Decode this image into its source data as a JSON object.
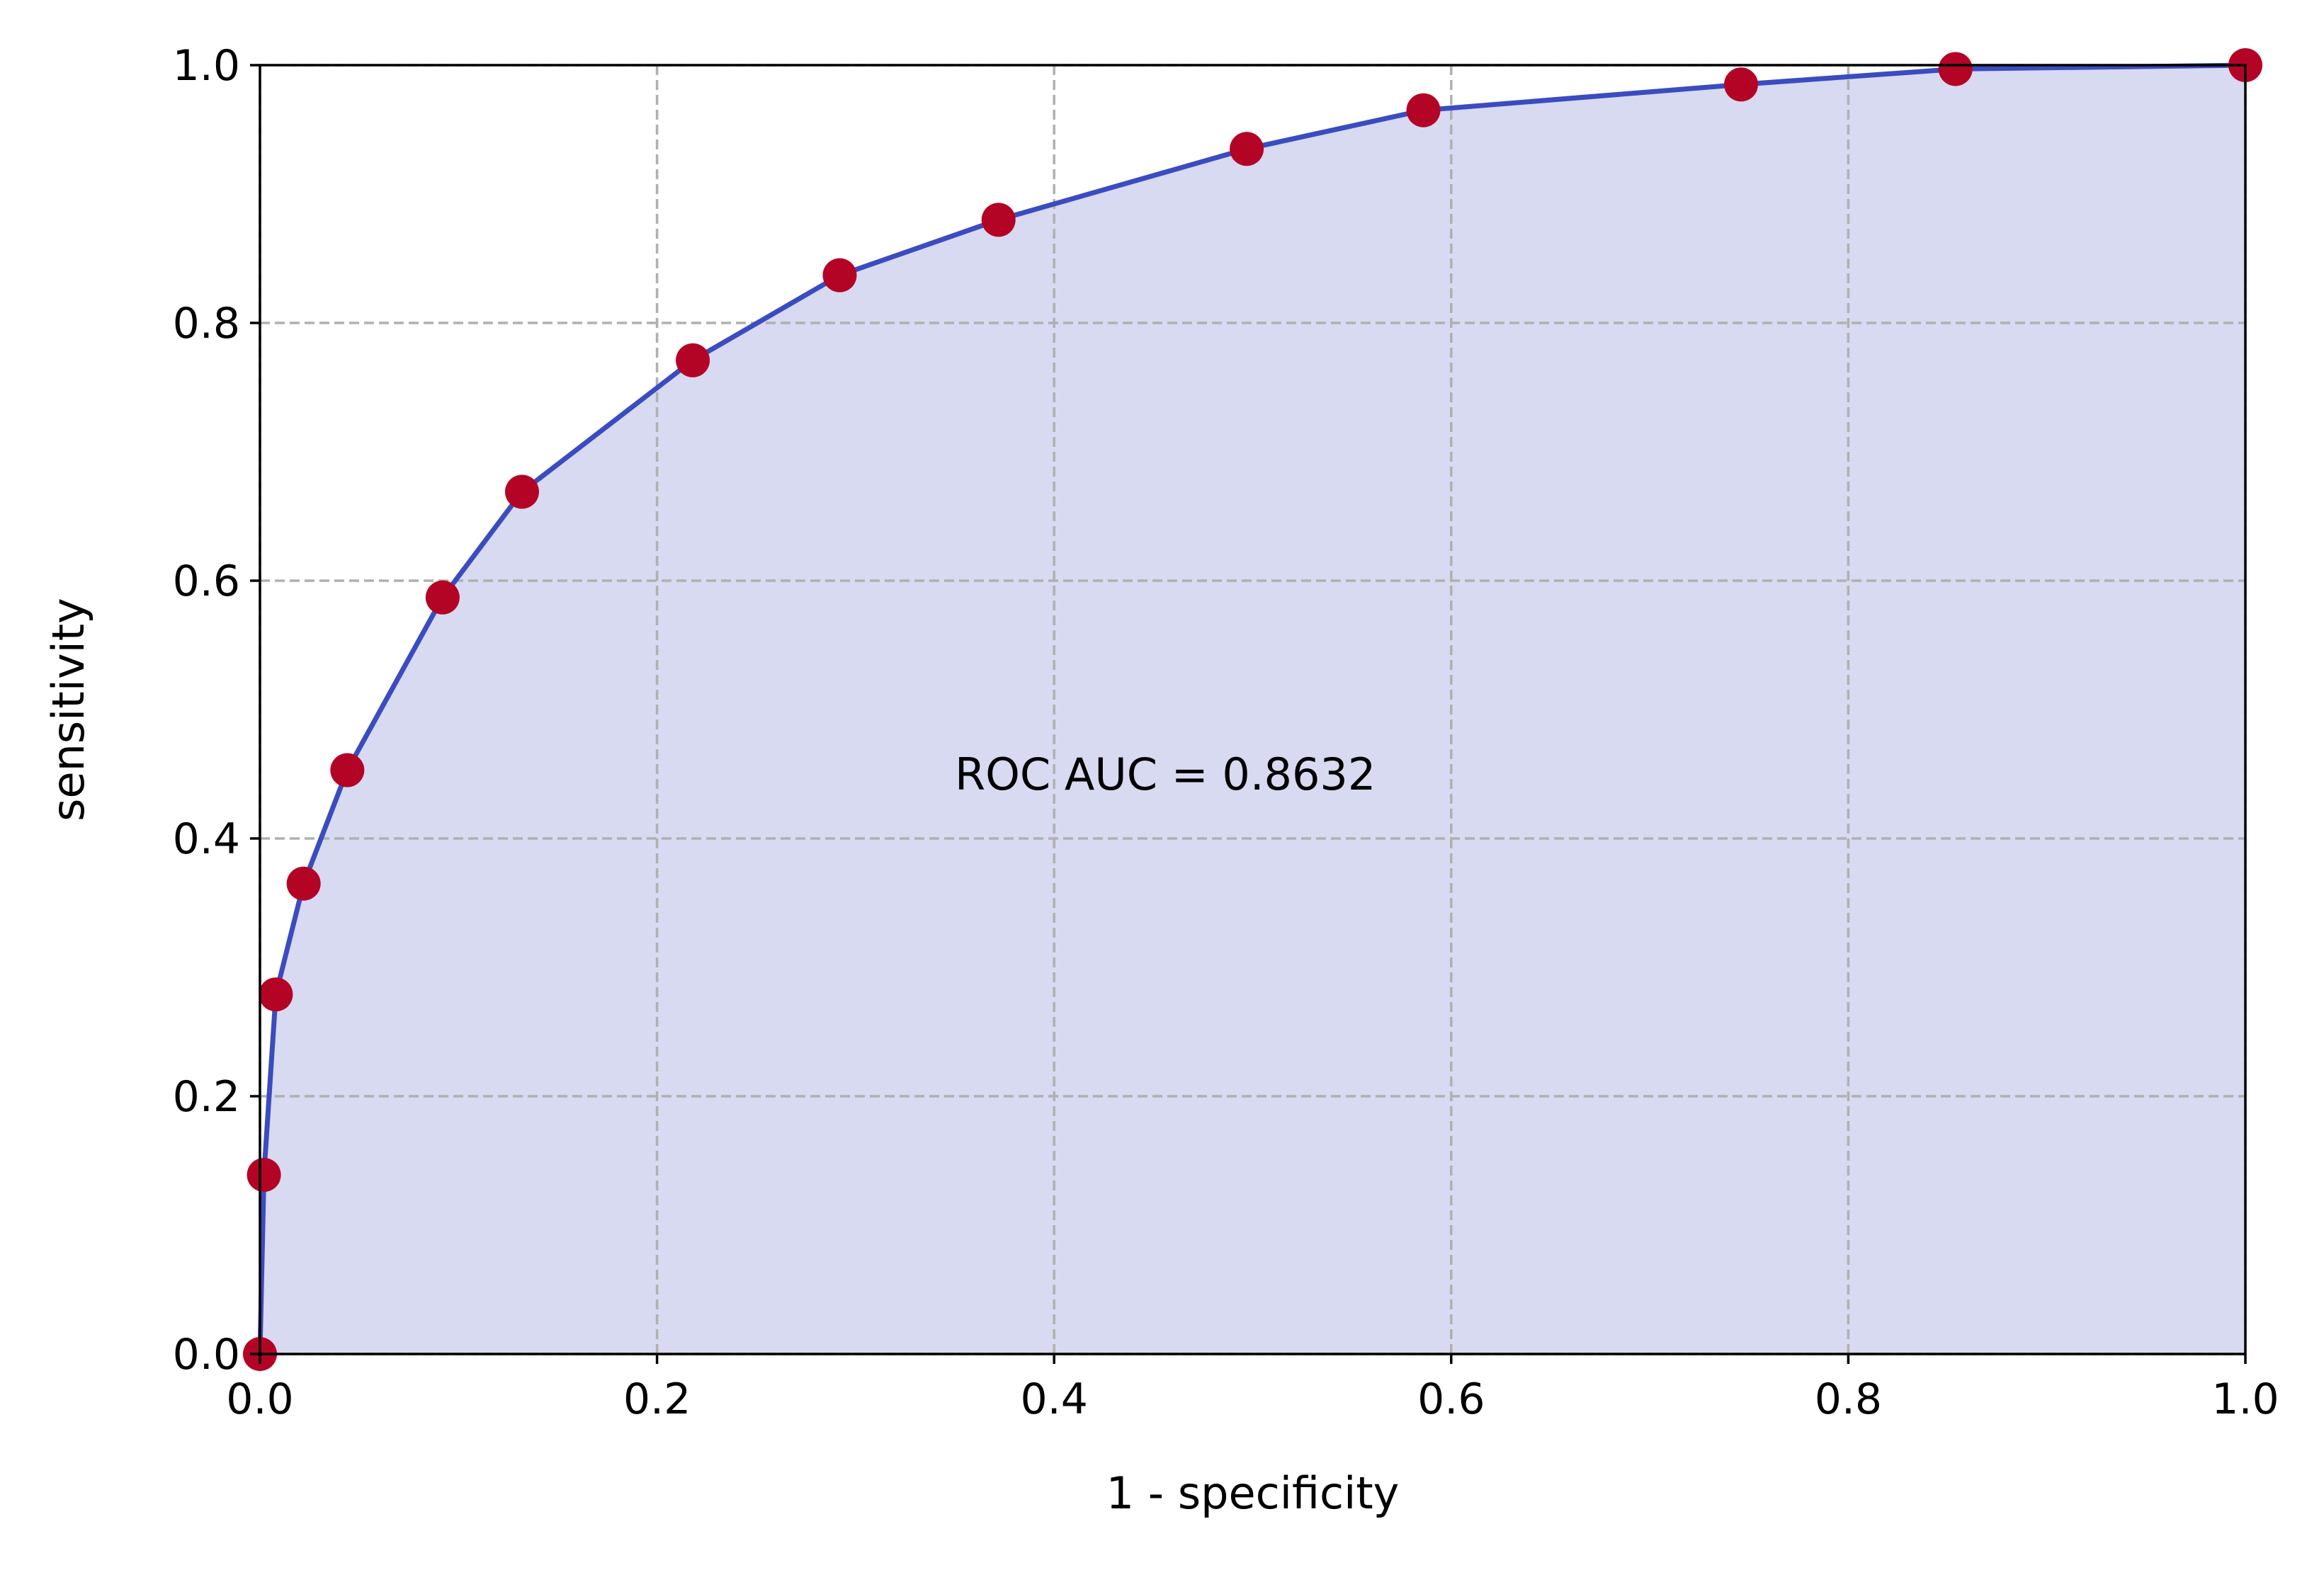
{
  "chart_data": {
    "type": "line",
    "title": "",
    "xlabel": "1 - specificity",
    "ylabel": "sensitivity",
    "xlim": [
      0.0,
      1.0
    ],
    "ylim": [
      0.0,
      1.0
    ],
    "x_ticks": [
      "0.0",
      "0.2",
      "0.4",
      "0.6",
      "0.8",
      "1.0"
    ],
    "y_ticks": [
      "0.0",
      "0.2",
      "0.4",
      "0.6",
      "0.8",
      "1.0"
    ],
    "grid": true,
    "annotation": {
      "text": "ROC AUC = 0.8632",
      "x": 0.35,
      "y": 0.45
    },
    "series": [
      {
        "color": "#3b4cc0",
        "fill_color": "#d7daf0",
        "marker_color": "#b40426",
        "x": [
          0.0,
          0.002,
          0.008,
          0.022,
          0.044,
          0.092,
          0.132,
          0.218,
          0.292,
          0.372,
          0.497,
          0.586,
          0.746,
          0.854,
          1.0
        ],
        "y": [
          0.0,
          0.139,
          0.279,
          0.365,
          0.453,
          0.587,
          0.669,
          0.771,
          0.837,
          0.88,
          0.935,
          0.965,
          0.985,
          0.997,
          1.0
        ]
      }
    ]
  }
}
